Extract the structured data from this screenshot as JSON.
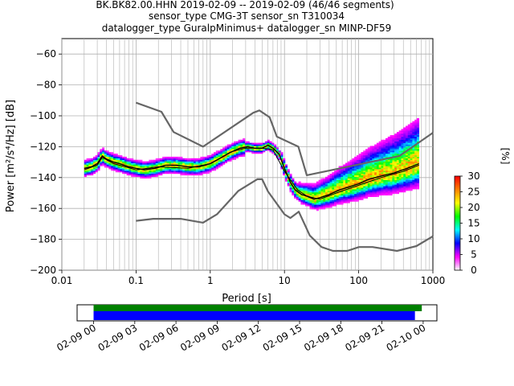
{
  "title_lines": [
    "BK.BK82.00.HHN   2019-02-09 -- 2019-02-09  (46/46 segments)",
    "sensor_type CMG-3T sensor_sn T310034",
    "datalogger_type GuralpMinimus+ datalogger_sn MINP-DF59"
  ],
  "chart_data": {
    "type": "heatmap",
    "xlabel": "Period [s]",
    "ylabel": "Power [m²/s⁴/Hz] [dB]",
    "xscale": "log",
    "xlim": [
      0.01,
      1000
    ],
    "ylim": [
      -200,
      -50
    ],
    "xticks": [
      0.01,
      0.1,
      1,
      10,
      100,
      1000
    ],
    "xtick_labels": [
      "0.01",
      "0.1",
      "1",
      "10",
      "100",
      "1000"
    ],
    "yticks": [
      -60,
      -80,
      -100,
      -120,
      -140,
      -160,
      -180,
      -200
    ],
    "ytick_labels": [
      "−60",
      "−80",
      "−100",
      "−120",
      "−140",
      "−160",
      "−180",
      "−200"
    ],
    "grid": true,
    "colorbar": {
      "label": "[%]",
      "min": 0,
      "max": 30,
      "ticks": [
        0,
        5,
        10,
        15,
        20,
        25,
        30
      ],
      "tick_labels": [
        "0",
        "5",
        "10",
        "15",
        "20",
        "25",
        "30"
      ],
      "colormap": [
        "#ffffff",
        "#ff00ff",
        "#0000ff",
        "#00ffff",
        "#00ff00",
        "#ffff00",
        "#ff8000",
        "#ff0000"
      ]
    },
    "nhnm": {
      "name": "NHNM",
      "color": "#666666",
      "x": [
        0.1,
        0.22,
        0.32,
        0.8,
        3.8,
        4.6,
        6.3,
        7.9,
        15.4,
        20,
        354.8,
        1000
      ],
      "y": [
        -91.5,
        -97.4,
        -110.5,
        -120,
        -98,
        -96.5,
        -101,
        -113.5,
        -120,
        -138.5,
        -126,
        -111
      ]
    },
    "nlnm": {
      "name": "NLNM",
      "color": "#666666",
      "x": [
        0.1,
        0.17,
        0.4,
        0.8,
        1.24,
        2.4,
        4.3,
        5,
        6,
        10,
        12,
        15.6,
        21.9,
        31.6,
        45,
        70,
        101,
        154,
        328,
        600,
        1000
      ],
      "y": [
        -168,
        -166.7,
        -166.7,
        -169.2,
        -163.7,
        -148.6,
        -141.1,
        -141.1,
        -149,
        -163.8,
        -166.2,
        -162.1,
        -177.5,
        -185,
        -187.5,
        -187.5,
        -185,
        -185,
        -187.5,
        -184.4,
        -178
      ]
    },
    "mean_psd": {
      "name": "mean",
      "color": "#000000",
      "x": [
        0.02,
        0.025,
        0.03,
        0.035,
        0.04,
        0.05,
        0.06,
        0.08,
        0.1,
        0.13,
        0.18,
        0.25,
        0.35,
        0.5,
        0.7,
        1,
        1.3,
        1.8,
        2.5,
        3.2,
        4,
        5,
        6,
        7,
        8.5,
        10,
        12,
        14,
        17,
        20,
        25,
        30,
        40,
        55,
        75,
        100,
        140,
        200,
        300,
        450,
        650
      ],
      "y": [
        -134,
        -133,
        -131,
        -126,
        -128,
        -130,
        -131,
        -133,
        -134,
        -135,
        -134,
        -132,
        -132,
        -133,
        -133,
        -131,
        -128,
        -124,
        -121,
        -120,
        -121,
        -121,
        -119,
        -121,
        -125,
        -134,
        -143,
        -148,
        -151,
        -152,
        -154,
        -153,
        -151,
        -148,
        -146,
        -144,
        -141,
        -139,
        -137,
        -134,
        -131
      ]
    },
    "mode_psd": {
      "name": "mode",
      "color": "#000000",
      "x": [
        0.02,
        0.03,
        0.035,
        0.05,
        0.1,
        0.2,
        0.5,
        1,
        2,
        3,
        5,
        7,
        10,
        15,
        20,
        30,
        50,
        100,
        200,
        400,
        650
      ],
      "y": [
        -135,
        -132,
        -127,
        -131,
        -135,
        -133,
        -134,
        -131,
        -123,
        -121,
        -121,
        -122,
        -136,
        -148,
        -152,
        -154,
        -150,
        -145,
        -140,
        -136,
        -132
      ]
    },
    "data_coverage": {
      "tick_labels": [
        "02-09 00",
        "02-09 03",
        "02-09 06",
        "02-09 09",
        "02-09 12",
        "02-09 15",
        "02-09 18",
        "02-09 21",
        "02-10 00"
      ],
      "tick_hours": [
        0,
        3,
        6,
        9,
        12,
        15,
        18,
        21,
        24
      ],
      "hours_span": [
        -1.2,
        25
      ],
      "used_color": "#008000",
      "available_color": "#0000ff",
      "used_hours": [
        0,
        23.9
      ],
      "available_hours": [
        0,
        23.4
      ]
    }
  }
}
